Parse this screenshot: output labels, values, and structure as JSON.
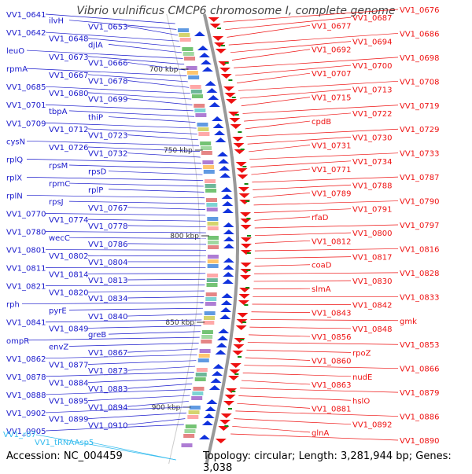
{
  "title": "Vibrio vulnificus CMCP6 chromosome I, complete genome",
  "accession": "Accession: NC_004459",
  "topology": "Topology: circular; Length: 3,281,944 bp; Genes: 3,038",
  "colors": {
    "left_label": "#1a1acc",
    "right_label": "#ee1111",
    "rna_label": "#33bbee",
    "blue_arrow": "#1133dd",
    "red_arrow": "#ee1111",
    "backbone": "#999999",
    "tick": "#118811"
  },
  "ticks": [
    "700 kbp",
    "750 kbp",
    "800 kbp",
    "850 kbp",
    "900 kbp"
  ],
  "left_labels": [
    "VV1_0641",
    "ilvH",
    "VV1_0653",
    "VV1_0642",
    "VV1_0648",
    "djlA",
    "leuO",
    "VV1_0673",
    "VV1_0666",
    "rpmA",
    "VV1_0667",
    "VV1_0678",
    "VV1_0685",
    "VV1_0680",
    "VV1_0699",
    "VV1_0701",
    "tbpA",
    "thiP",
    "VV1_0709",
    "VV1_0712",
    "VV1_0723",
    "cysN",
    "VV1_0726",
    "VV1_0732",
    "rplQ",
    "rpsM",
    "rpsD",
    "rplX",
    "rpmC",
    "rplP",
    "rplN",
    "rpsJ",
    "VV1_0767",
    "VV1_0770",
    "VV1_0774",
    "VV1_0778",
    "VV1_0780",
    "wecC",
    "VV1_0786",
    "VV1_0801",
    "VV1_0802",
    "VV1_0804",
    "VV1_0811",
    "VV1_0814",
    "VV1_0813",
    "VV1_0821",
    "VV1_0820",
    "VV1_0834",
    "rph",
    "pyrE",
    "VV1_0840",
    "VV1_0841",
    "VV1_0849",
    "greB",
    "ompR",
    "envZ",
    "VV1_0867",
    "VV1_0862",
    "VV1_0877",
    "VV1_0873",
    "VV1_0878",
    "VV1_0884",
    "VV1_0883",
    "VV1_0888",
    "VV1_0895",
    "VV1_0894",
    "VV1_0902",
    "VV1_0899",
    "VV1_0910",
    "VV1_0905"
  ],
  "rna_labels": [
    "VV1_r07",
    "VV1_tRNAAsp5"
  ],
  "right_labels": [
    "VV1_0676",
    "VV1_0687",
    "VV1_0677",
    "VV1_0686",
    "VV1_0694",
    "VV1_0692",
    "VV1_0698",
    "VV1_0700",
    "VV1_0707",
    "VV1_0708",
    "VV1_0713",
    "VV1_0715",
    "VV1_0719",
    "VV1_0722",
    "cpdB",
    "VV1_0729",
    "VV1_0730",
    "VV1_0731",
    "VV1_0733",
    "VV1_0734",
    "VV1_0771",
    "VV1_0787",
    "VV1_0788",
    "VV1_0789",
    "VV1_0790",
    "VV1_0791",
    "rfaD",
    "VV1_0797",
    "VV1_0800",
    "VV1_0812",
    "VV1_0816",
    "VV1_0817",
    "coaD",
    "VV1_0828",
    "VV1_0830",
    "slmA",
    "VV1_0833",
    "VV1_0842",
    "VV1_0843",
    "gmk",
    "VV1_0848",
    "VV1_0856",
    "VV1_0853",
    "rpoZ",
    "VV1_0860",
    "VV1_0866",
    "nudE",
    "VV1_0863",
    "VV1_0879",
    "hslO",
    "VV1_0881",
    "VV1_0886",
    "VV1_0892",
    "glnA",
    "VV1_0890"
  ]
}
